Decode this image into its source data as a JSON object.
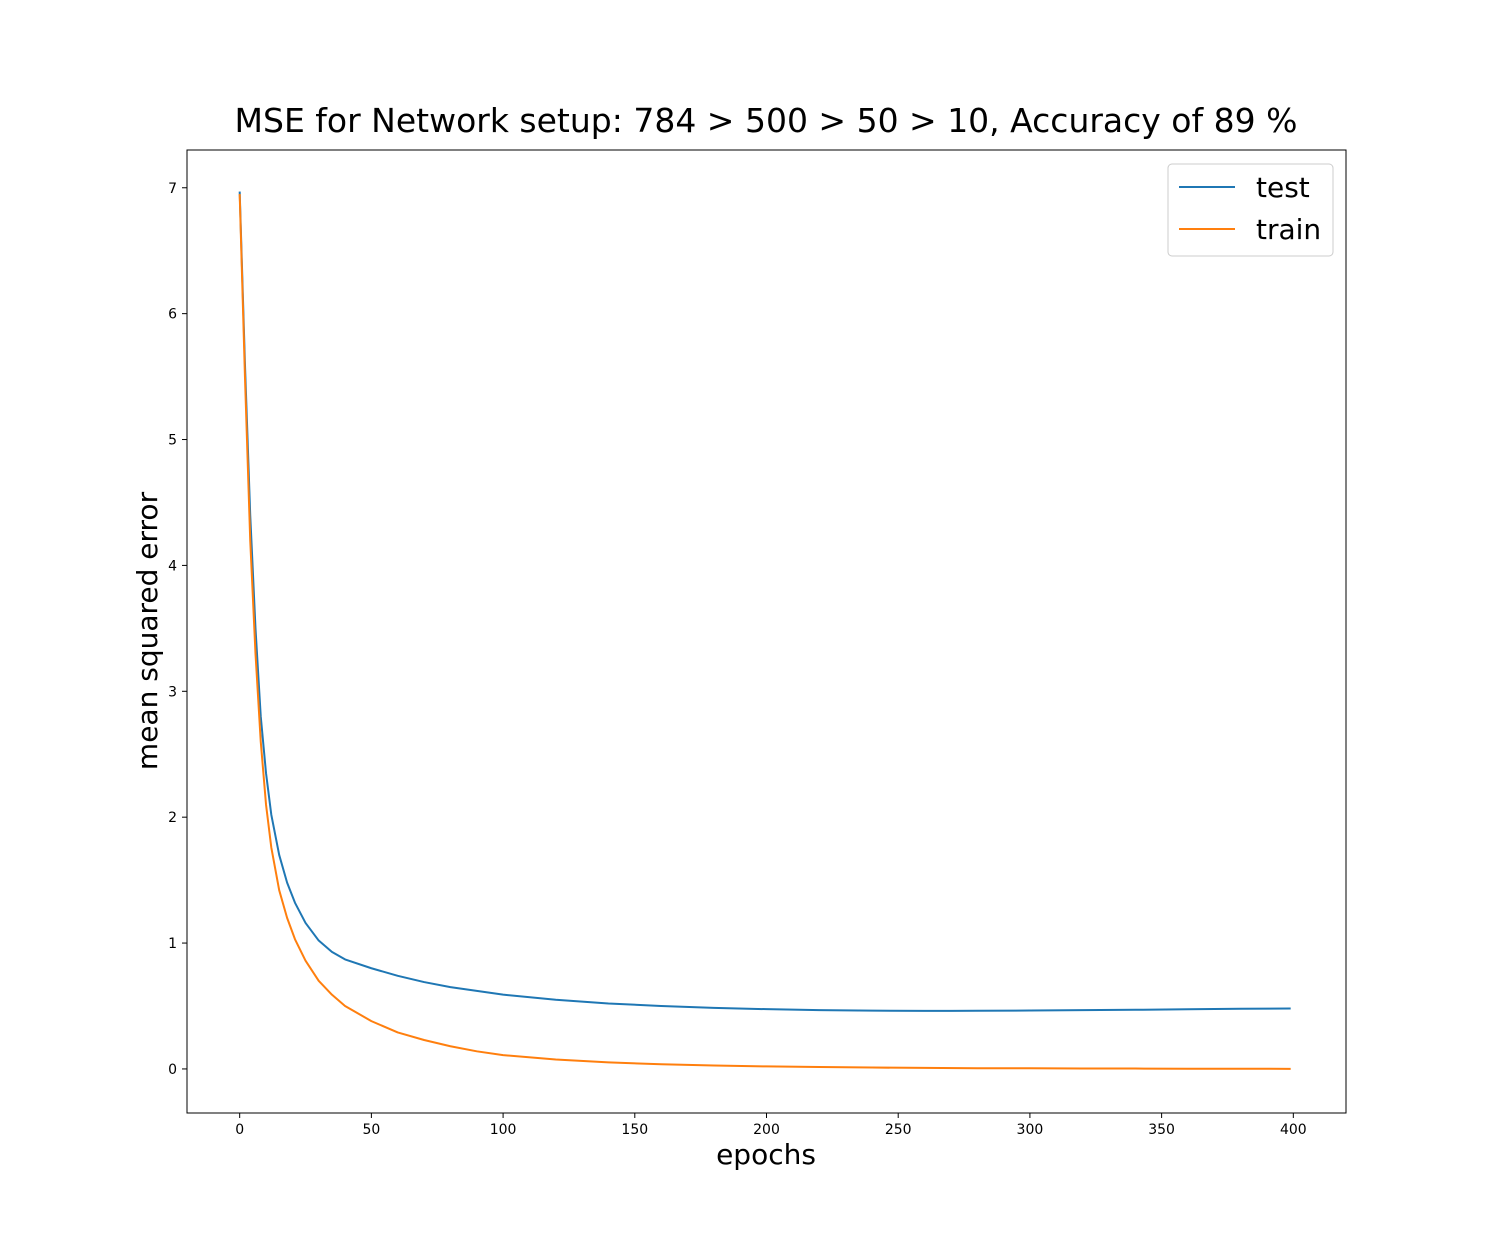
{
  "chart_data": {
    "type": "line",
    "title": "MSE for Network setup: 784 > 500 > 50 > 10, Accuracy of 89 %",
    "xlabel": "epochs",
    "ylabel": "mean squared error",
    "xlim": [
      -20,
      420
    ],
    "ylim": [
      -0.35,
      7.3
    ],
    "xticks": [
      0,
      50,
      100,
      150,
      200,
      250,
      300,
      350,
      400
    ],
    "yticks": [
      0,
      1,
      2,
      3,
      4,
      5,
      6,
      7
    ],
    "grid": false,
    "legend_position": "top-right",
    "series": [
      {
        "name": "test",
        "color": "#1f77b4",
        "x": [
          0,
          2,
          4,
          6,
          8,
          10,
          12,
          15,
          18,
          21,
          25,
          30,
          35,
          40,
          50,
          60,
          70,
          80,
          90,
          100,
          120,
          140,
          160,
          180,
          200,
          220,
          240,
          260,
          270,
          280,
          300,
          320,
          340,
          360,
          380,
          399
        ],
        "y": [
          6.97,
          5.6,
          4.4,
          3.5,
          2.8,
          2.35,
          2.02,
          1.7,
          1.48,
          1.32,
          1.16,
          1.02,
          0.93,
          0.87,
          0.8,
          0.74,
          0.69,
          0.65,
          0.62,
          0.59,
          0.55,
          0.52,
          0.5,
          0.485,
          0.475,
          0.467,
          0.463,
          0.461,
          0.461,
          0.462,
          0.464,
          0.467,
          0.47,
          0.474,
          0.478,
          0.48
        ]
      },
      {
        "name": "train",
        "color": "#ff7f0e",
        "x": [
          0,
          2,
          4,
          6,
          8,
          10,
          12,
          15,
          18,
          21,
          25,
          30,
          35,
          40,
          50,
          60,
          70,
          80,
          90,
          100,
          120,
          140,
          160,
          180,
          200,
          220,
          240,
          260,
          280,
          300,
          320,
          340,
          360,
          380,
          399
        ],
        "y": [
          6.95,
          5.5,
          4.2,
          3.3,
          2.6,
          2.1,
          1.76,
          1.42,
          1.2,
          1.03,
          0.86,
          0.7,
          0.59,
          0.5,
          0.38,
          0.29,
          0.23,
          0.18,
          0.14,
          0.11,
          0.075,
          0.052,
          0.037,
          0.027,
          0.02,
          0.015,
          0.011,
          0.008,
          0.006,
          0.005,
          0.004,
          0.003,
          0.002,
          0.002,
          0.001
        ]
      }
    ]
  }
}
